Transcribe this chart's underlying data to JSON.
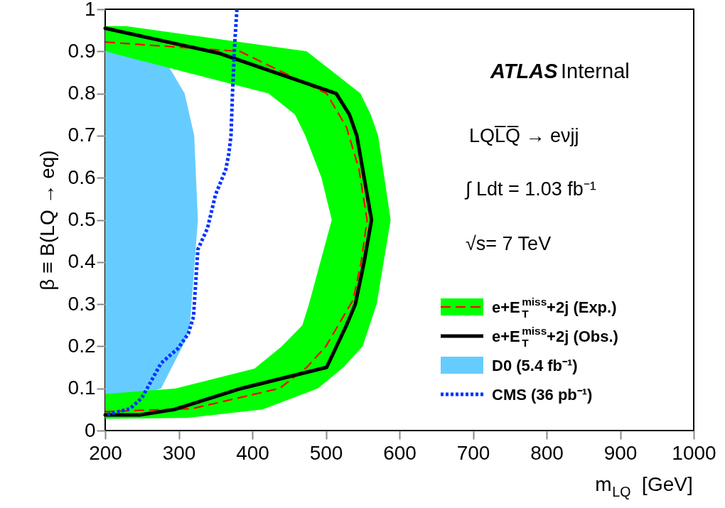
{
  "chart_data": {
    "type": "line",
    "xlabel": "m$_{LQ}$  [GeV]",
    "ylabel": "β ≡ B(LQ → eq)",
    "xlim": [
      200,
      1000
    ],
    "ylim": [
      0,
      1
    ],
    "xticks": [
      200,
      300,
      400,
      500,
      600,
      700,
      800,
      900,
      1000
    ],
    "yticks": [
      0,
      0.1,
      0.2,
      0.3,
      0.4,
      0.5,
      0.6,
      0.7,
      0.8,
      0.9,
      1
    ],
    "grid": false,
    "legend": "bottom right",
    "marker": "none",
    "annotations": [
      "ATLAS",
      "Internal",
      "LQL̅Q̅ → eνjj",
      "∫ Ldt = 1.03 fb⁻¹",
      "√s= 7 TeV"
    ],
    "series": [
      {
        "name": "D0 (5.4 fb⁻¹)",
        "type": "area",
        "color": "#66ccff",
        "x": [
          200,
          286,
          308,
          321,
          326,
          315,
          308,
          276,
          200
        ],
        "values": [
          0.9,
          0.865,
          0.8,
          0.7,
          0.5,
          0.246,
          0.21,
          0.1,
          0.06
        ]
      },
      {
        "type": "area",
        "color": "#00ff00",
        "x": [
          200,
          228,
          474,
          547,
          561,
          571,
          588,
          569,
          550,
          524,
          489,
          414,
          311,
          200,
          200,
          296,
          403,
          440,
          468,
          477,
          508,
          494,
          472,
          458,
          422,
          200
        ],
        "values": [
          0.96,
          0.96,
          0.9,
          0.8,
          0.75,
          0.7,
          0.5,
          0.3,
          0.2,
          0.15,
          0.1,
          0.05,
          0.03,
          0.028,
          0.087,
          0.1,
          0.147,
          0.2,
          0.25,
          0.3,
          0.5,
          0.6,
          0.7,
          0.75,
          0.8,
          0.9
        ]
      },
      {
        "name": "e+E$^{miss}$$_{T}$+2j (Exp.)",
        "color": "#ff0000",
        "line_style": "dashed",
        "x": [
          200,
          383,
          501,
          528,
          545,
          556,
          548,
          537,
          500,
          474,
          437,
          318,
          200
        ],
        "values": [
          0.922,
          0.9,
          0.8,
          0.72,
          0.62,
          0.5,
          0.4,
          0.31,
          0.2,
          0.15,
          0.1,
          0.052,
          0.045
        ]
      },
      {
        "name": "e+E$^{miss}$$_{T}$+2j (Obs.)",
        "color": "#000000",
        "line_style": "solid",
        "x": [
          200,
          356,
          514,
          532,
          542,
          552,
          562,
          552,
          540,
          528,
          501,
          385,
          294,
          247,
          200
        ],
        "values": [
          0.955,
          0.895,
          0.8,
          0.75,
          0.7,
          0.6,
          0.5,
          0.4,
          0.3,
          0.25,
          0.15,
          0.1,
          0.05,
          0.037,
          0.037
        ]
      },
      {
        "name": "CMS (36 pb⁻¹)",
        "color": "#0033ff",
        "line_style": "dotted",
        "x": [
          379,
          376,
          373,
          371,
          368,
          364,
          350,
          339,
          326,
          323,
          320,
          313,
          299,
          276,
          250,
          234,
          205,
          200
        ],
        "values": [
          1.0,
          0.917,
          0.8,
          0.7,
          0.657,
          0.62,
          0.56,
          0.48,
          0.43,
          0.35,
          0.27,
          0.23,
          0.195,
          0.16,
          0.078,
          0.052,
          0.039,
          0.038
        ]
      }
    ]
  }
}
